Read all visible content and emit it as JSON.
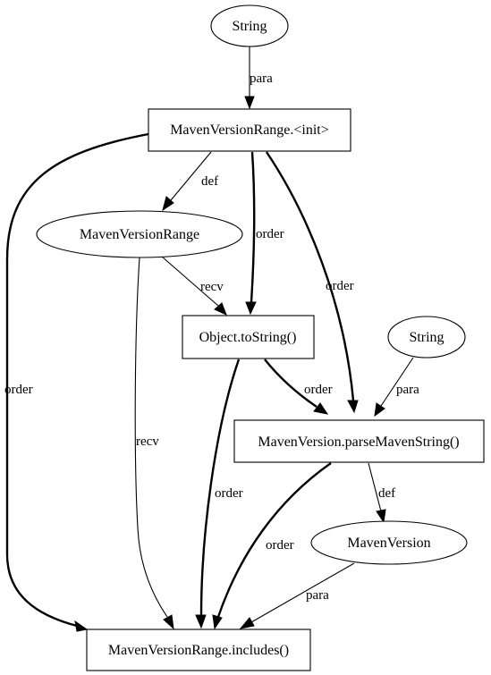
{
  "nodes": {
    "string_top": "String",
    "range_init": "MavenVersionRange.<init>",
    "range_var": "MavenVersionRange",
    "tostring": "Object.toString()",
    "string_right": "String",
    "parse": "MavenVersion.parseMavenString()",
    "version_var": "MavenVersion",
    "includes": "MavenVersionRange.includes()"
  },
  "edges": {
    "e_para_top": "para",
    "e_order_left": "order",
    "e_def_range": "def",
    "e_order_tostring": "order",
    "e_order_parse_long": "order",
    "e_recv_tostring": "recv",
    "e_recv_includes": "recv",
    "e_order_tostring_parse": "order",
    "e_para_right": "para",
    "e_order_tostring_includes": "order",
    "e_def_version": "def",
    "e_order_parse_includes": "order",
    "e_para_version": "para"
  }
}
